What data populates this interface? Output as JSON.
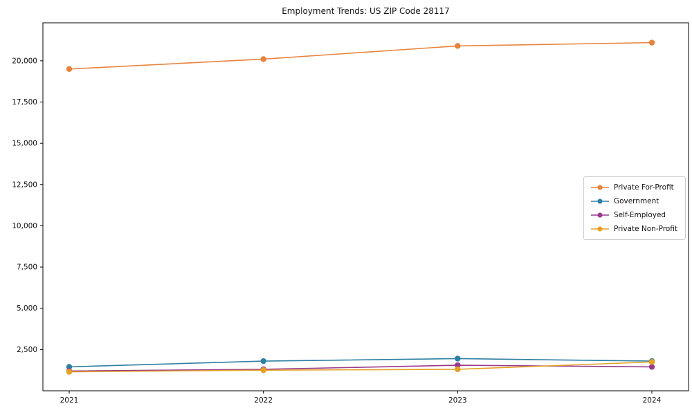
{
  "figure": {
    "title": "Employment Trends: US ZIP Code 28117"
  },
  "chart_data": {
    "type": "line",
    "title": "Employment Trends: US ZIP Code 28117",
    "xlabel": "",
    "ylabel": "",
    "x": [
      2021,
      2022,
      2023,
      2024
    ],
    "series": [
      {
        "name": "Private For-Profit",
        "color": "#E8833C",
        "values": [
          19500,
          20100,
          20900,
          21100
        ]
      },
      {
        "name": "Government",
        "color": "#2E7FA3",
        "values": [
          1450,
          1800,
          1950,
          1800
        ]
      },
      {
        "name": "Self-Employed",
        "color": "#99398B",
        "values": [
          1200,
          1300,
          1550,
          1450
        ]
      },
      {
        "name": "Private Non-Profit",
        "color": "#E5A124",
        "values": [
          1150,
          1250,
          1300,
          1750
        ]
      }
    ],
    "ylim": [
      0,
      22300
    ],
    "yticks": [
      2500,
      5000,
      7500,
      10000,
      12500,
      15000,
      17500,
      20000
    ],
    "grid": false,
    "legend_position": "center-right",
    "marker": "circle"
  }
}
